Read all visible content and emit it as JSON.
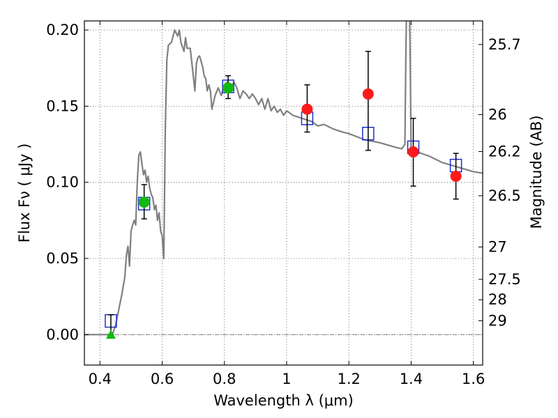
{
  "chart_data": {
    "type": "scatter",
    "xlabel": "Wavelength  λ (μm)",
    "ylabel": "Flux  Fν  ( μJy )",
    "ylabel_right": "Magnitude (AB)",
    "xlim": [
      0.35,
      1.63
    ],
    "ylim": [
      -0.02,
      0.206
    ],
    "x_ticks": [
      0.4,
      0.6,
      0.8,
      1.0,
      1.2,
      1.4,
      1.6
    ],
    "x_tick_labels": [
      "0.4",
      "0.6",
      "0.8",
      "1",
      "1.2",
      "1.4",
      "1.6"
    ],
    "y_ticks": [
      0.0,
      0.05,
      0.1,
      0.15,
      0.2
    ],
    "y_tick_labels": [
      "0.00",
      "0.05",
      "0.10",
      "0.15",
      "0.20"
    ],
    "right_ticks": [
      {
        "label": "25.7",
        "flux": 0.1905
      },
      {
        "label": "26",
        "flux": 0.1445
      },
      {
        "label": "26.2",
        "flux": 0.1202
      },
      {
        "label": "26.5",
        "flux": 0.0912
      },
      {
        "label": "27",
        "flux": 0.0575
      },
      {
        "label": "27.5",
        "flux": 0.0363
      },
      {
        "label": "28",
        "flux": 0.0229
      },
      {
        "label": "29",
        "flux": 0.0091
      }
    ],
    "grid": true,
    "zero_line": true,
    "series": [
      {
        "kind": "line",
        "color": "#808080",
        "points": [
          [
            0.35,
            0.0
          ],
          [
            0.43,
            0.0
          ],
          [
            0.44,
            0.0
          ],
          [
            0.45,
            0.006
          ],
          [
            0.46,
            0.016
          ],
          [
            0.47,
            0.026
          ],
          [
            0.48,
            0.038
          ],
          [
            0.485,
            0.052
          ],
          [
            0.49,
            0.058
          ],
          [
            0.495,
            0.045
          ],
          [
            0.5,
            0.068
          ],
          [
            0.505,
            0.072
          ],
          [
            0.51,
            0.075
          ],
          [
            0.515,
            0.072
          ],
          [
            0.52,
            0.1
          ],
          [
            0.525,
            0.118
          ],
          [
            0.53,
            0.12
          ],
          [
            0.535,
            0.112
          ],
          [
            0.54,
            0.105
          ],
          [
            0.545,
            0.108
          ],
          [
            0.55,
            0.1
          ],
          [
            0.555,
            0.104
          ],
          [
            0.56,
            0.096
          ],
          [
            0.565,
            0.092
          ],
          [
            0.57,
            0.09
          ],
          [
            0.575,
            0.082
          ],
          [
            0.58,
            0.085
          ],
          [
            0.585,
            0.075
          ],
          [
            0.59,
            0.08
          ],
          [
            0.595,
            0.068
          ],
          [
            0.6,
            0.065
          ],
          [
            0.605,
            0.05
          ],
          [
            0.61,
            0.135
          ],
          [
            0.615,
            0.18
          ],
          [
            0.62,
            0.19
          ],
          [
            0.63,
            0.192
          ],
          [
            0.64,
            0.2
          ],
          [
            0.65,
            0.196
          ],
          [
            0.655,
            0.2
          ],
          [
            0.66,
            0.192
          ],
          [
            0.67,
            0.186
          ],
          [
            0.675,
            0.195
          ],
          [
            0.68,
            0.188
          ],
          [
            0.69,
            0.188
          ],
          [
            0.7,
            0.17
          ],
          [
            0.705,
            0.16
          ],
          [
            0.71,
            0.178
          ],
          [
            0.715,
            0.182
          ],
          [
            0.72,
            0.183
          ],
          [
            0.73,
            0.176
          ],
          [
            0.735,
            0.17
          ],
          [
            0.74,
            0.168
          ],
          [
            0.745,
            0.16
          ],
          [
            0.75,
            0.164
          ],
          [
            0.755,
            0.16
          ],
          [
            0.76,
            0.148
          ],
          [
            0.77,
            0.157
          ],
          [
            0.78,
            0.162
          ],
          [
            0.79,
            0.157
          ],
          [
            0.8,
            0.164
          ],
          [
            0.81,
            0.166
          ],
          [
            0.82,
            0.16
          ],
          [
            0.83,
            0.166
          ],
          [
            0.84,
            0.162
          ],
          [
            0.85,
            0.155
          ],
          [
            0.86,
            0.16
          ],
          [
            0.87,
            0.158
          ],
          [
            0.88,
            0.155
          ],
          [
            0.89,
            0.158
          ],
          [
            0.9,
            0.155
          ],
          [
            0.91,
            0.151
          ],
          [
            0.92,
            0.155
          ],
          [
            0.93,
            0.148
          ],
          [
            0.94,
            0.155
          ],
          [
            0.95,
            0.147
          ],
          [
            0.96,
            0.15
          ],
          [
            0.97,
            0.146
          ],
          [
            0.98,
            0.148
          ],
          [
            0.99,
            0.144
          ],
          [
            1.0,
            0.147
          ],
          [
            1.02,
            0.144
          ],
          [
            1.05,
            0.142
          ],
          [
            1.08,
            0.14
          ],
          [
            1.1,
            0.137
          ],
          [
            1.12,
            0.138
          ],
          [
            1.15,
            0.135
          ],
          [
            1.18,
            0.133
          ],
          [
            1.2,
            0.132
          ],
          [
            1.25,
            0.128
          ],
          [
            1.3,
            0.126
          ],
          [
            1.35,
            0.123
          ],
          [
            1.37,
            0.122
          ],
          [
            1.38,
            0.125
          ],
          [
            1.383,
            0.18
          ],
          [
            1.387,
            0.24
          ],
          [
            1.393,
            0.24
          ],
          [
            1.397,
            0.18
          ],
          [
            1.4,
            0.122
          ],
          [
            1.42,
            0.12
          ],
          [
            1.46,
            0.117
          ],
          [
            1.5,
            0.113
          ],
          [
            1.55,
            0.11
          ],
          [
            1.6,
            0.107
          ],
          [
            1.63,
            0.106
          ]
        ]
      },
      {
        "kind": "hollow-square",
        "color": "#1f2fcf",
        "points": [
          [
            0.435,
            0.009
          ],
          [
            0.542,
            0.086
          ],
          [
            0.812,
            0.163
          ],
          [
            1.066,
            0.142
          ],
          [
            1.262,
            0.132
          ],
          [
            1.407,
            0.123
          ],
          [
            1.544,
            0.111
          ]
        ]
      },
      {
        "kind": "filled-circle",
        "color": "#12b812",
        "points": [
          [
            0.542,
            0.087
          ],
          [
            0.812,
            0.162
          ]
        ],
        "errors": [
          [
            0.076,
            0.0985
          ],
          [
            0.155,
            0.17
          ]
        ]
      },
      {
        "kind": "filled-circle",
        "color": "#ff1a1a",
        "points": [
          [
            1.066,
            0.148
          ],
          [
            1.262,
            0.158
          ],
          [
            1.407,
            0.12
          ],
          [
            1.544,
            0.104
          ]
        ],
        "errors": [
          [
            0.133,
            0.164
          ],
          [
            0.121,
            0.186
          ],
          [
            0.0975,
            0.142
          ],
          [
            0.089,
            0.119
          ]
        ]
      },
      {
        "kind": "triangle",
        "color": "#12b812",
        "points": [
          [
            0.435,
            0.0
          ]
        ],
        "errors": [
          [
            0.0,
            0.013
          ]
        ]
      }
    ]
  }
}
